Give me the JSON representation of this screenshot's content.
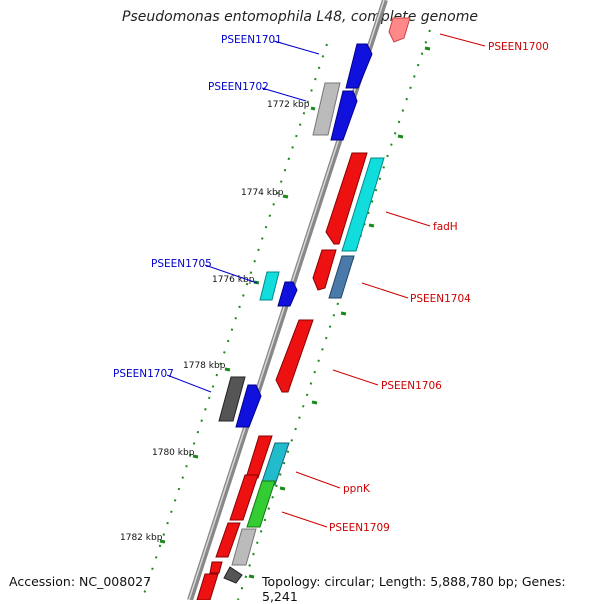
{
  "title": "Pseudomonas entomophila L48, complete genome",
  "footer": {
    "accession": "Accession: NC_008027",
    "topology": "Topology: circular; Length: 5,888,780 bp; Genes: 5,241"
  },
  "ruler_labels": [
    "1772 kbp",
    "1774 kbp",
    "1776 kbp",
    "1778 kbp",
    "1780 kbp",
    "1782 kbp"
  ],
  "gene_labels": {
    "forward": [
      "PSEEN1701",
      "PSEEN1702",
      "PSEEN1705",
      "PSEEN1707"
    ],
    "reverse": [
      "PSEEN1700",
      "fadH",
      "PSEEN1704",
      "PSEEN1706",
      "ppnK",
      "PSEEN1709"
    ]
  },
  "colors": {
    "forward_label": "#0000cc",
    "reverse_label": "#cc0000",
    "backbone": "#8a8a8a",
    "tick": "#1a8a1a",
    "gene_red": "#ee1111",
    "gene_blue": "#1111dd",
    "gene_cyan": "#11dddd",
    "gene_gray": "#bbbbbb",
    "gene_dark": "#555555",
    "gene_green": "#33cc33",
    "gene_steel": "#4a7aaa",
    "gene_teal": "#22bbcc"
  }
}
